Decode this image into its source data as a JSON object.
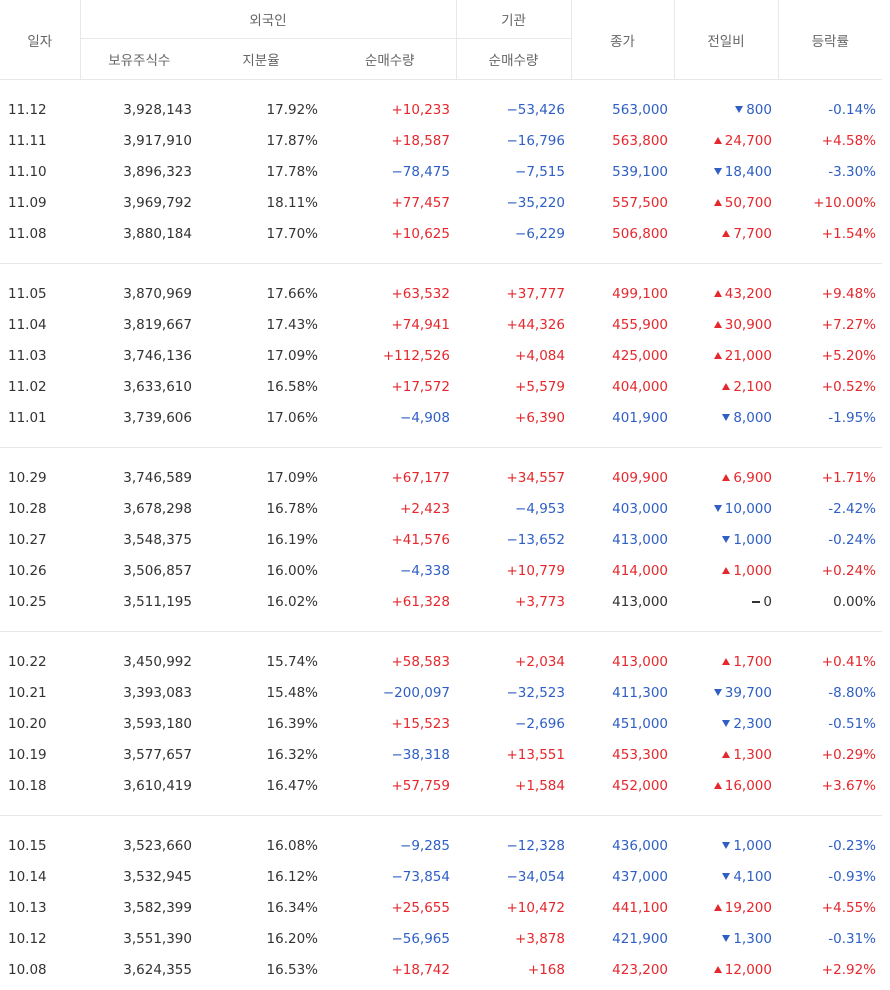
{
  "header": {
    "date": "일자",
    "foreign": "외국인",
    "institution": "기관",
    "close": "종가",
    "change": "전일비",
    "rate": "등락률",
    "holdings": "보유주식수",
    "share_ratio": "지분율",
    "foreign_net": "순매수량",
    "inst_net": "순매수량"
  },
  "groups": [
    [
      {
        "date": "11.12",
        "holdings": "3,928,143",
        "ratio": "17.92%",
        "foreign": "+10,233",
        "inst": "−53,426",
        "close": "563,000",
        "dir": "down",
        "change": "800",
        "rate": "-0.14%"
      },
      {
        "date": "11.11",
        "holdings": "3,917,910",
        "ratio": "17.87%",
        "foreign": "+18,587",
        "inst": "−16,796",
        "close": "563,800",
        "dir": "up",
        "change": "24,700",
        "rate": "+4.58%"
      },
      {
        "date": "11.10",
        "holdings": "3,896,323",
        "ratio": "17.78%",
        "foreign": "−78,475",
        "inst": "−7,515",
        "close": "539,100",
        "dir": "down",
        "change": "18,400",
        "rate": "-3.30%"
      },
      {
        "date": "11.09",
        "holdings": "3,969,792",
        "ratio": "18.11%",
        "foreign": "+77,457",
        "inst": "−35,220",
        "close": "557,500",
        "dir": "up",
        "change": "50,700",
        "rate": "+10.00%"
      },
      {
        "date": "11.08",
        "holdings": "3,880,184",
        "ratio": "17.70%",
        "foreign": "+10,625",
        "inst": "−6,229",
        "close": "506,800",
        "dir": "up",
        "change": "7,700",
        "rate": "+1.54%"
      }
    ],
    [
      {
        "date": "11.05",
        "holdings": "3,870,969",
        "ratio": "17.66%",
        "foreign": "+63,532",
        "inst": "+37,777",
        "close": "499,100",
        "dir": "up",
        "change": "43,200",
        "rate": "+9.48%"
      },
      {
        "date": "11.04",
        "holdings": "3,819,667",
        "ratio": "17.43%",
        "foreign": "+74,941",
        "inst": "+44,326",
        "close": "455,900",
        "dir": "up",
        "change": "30,900",
        "rate": "+7.27%"
      },
      {
        "date": "11.03",
        "holdings": "3,746,136",
        "ratio": "17.09%",
        "foreign": "+112,526",
        "inst": "+4,084",
        "close": "425,000",
        "dir": "up",
        "change": "21,000",
        "rate": "+5.20%"
      },
      {
        "date": "11.02",
        "holdings": "3,633,610",
        "ratio": "16.58%",
        "foreign": "+17,572",
        "inst": "+5,579",
        "close": "404,000",
        "dir": "up",
        "change": "2,100",
        "rate": "+0.52%"
      },
      {
        "date": "11.01",
        "holdings": "3,739,606",
        "ratio": "17.06%",
        "foreign": "−4,908",
        "inst": "+6,390",
        "close": "401,900",
        "dir": "down",
        "change": "8,000",
        "rate": "-1.95%"
      }
    ],
    [
      {
        "date": "10.29",
        "holdings": "3,746,589",
        "ratio": "17.09%",
        "foreign": "+67,177",
        "inst": "+34,557",
        "close": "409,900",
        "dir": "up",
        "change": "6,900",
        "rate": "+1.71%"
      },
      {
        "date": "10.28",
        "holdings": "3,678,298",
        "ratio": "16.78%",
        "foreign": "+2,423",
        "inst": "−4,953",
        "close": "403,000",
        "dir": "down",
        "change": "10,000",
        "rate": "-2.42%"
      },
      {
        "date": "10.27",
        "holdings": "3,548,375",
        "ratio": "16.19%",
        "foreign": "+41,576",
        "inst": "−13,652",
        "close": "413,000",
        "dir": "down",
        "change": "1,000",
        "rate": "-0.24%"
      },
      {
        "date": "10.26",
        "holdings": "3,506,857",
        "ratio": "16.00%",
        "foreign": "−4,338",
        "inst": "+10,779",
        "close": "414,000",
        "dir": "up",
        "change": "1,000",
        "rate": "+0.24%"
      },
      {
        "date": "10.25",
        "holdings": "3,511,195",
        "ratio": "16.02%",
        "foreign": "+61,328",
        "inst": "+3,773",
        "close": "413,000",
        "dir": "flat",
        "change": "0",
        "rate": "0.00%"
      }
    ],
    [
      {
        "date": "10.22",
        "holdings": "3,450,992",
        "ratio": "15.74%",
        "foreign": "+58,583",
        "inst": "+2,034",
        "close": "413,000",
        "dir": "up",
        "change": "1,700",
        "rate": "+0.41%"
      },
      {
        "date": "10.21",
        "holdings": "3,393,083",
        "ratio": "15.48%",
        "foreign": "−200,097",
        "inst": "−32,523",
        "close": "411,300",
        "dir": "down",
        "change": "39,700",
        "rate": "-8.80%"
      },
      {
        "date": "10.20",
        "holdings": "3,593,180",
        "ratio": "16.39%",
        "foreign": "+15,523",
        "inst": "−2,696",
        "close": "451,000",
        "dir": "down",
        "change": "2,300",
        "rate": "-0.51%"
      },
      {
        "date": "10.19",
        "holdings": "3,577,657",
        "ratio": "16.32%",
        "foreign": "−38,318",
        "inst": "+13,551",
        "close": "453,300",
        "dir": "up",
        "change": "1,300",
        "rate": "+0.29%"
      },
      {
        "date": "10.18",
        "holdings": "3,610,419",
        "ratio": "16.47%",
        "foreign": "+57,759",
        "inst": "+1,584",
        "close": "452,000",
        "dir": "up",
        "change": "16,000",
        "rate": "+3.67%"
      }
    ],
    [
      {
        "date": "10.15",
        "holdings": "3,523,660",
        "ratio": "16.08%",
        "foreign": "−9,285",
        "inst": "−12,328",
        "close": "436,000",
        "dir": "down",
        "change": "1,000",
        "rate": "-0.23%"
      },
      {
        "date": "10.14",
        "holdings": "3,532,945",
        "ratio": "16.12%",
        "foreign": "−73,854",
        "inst": "−34,054",
        "close": "437,000",
        "dir": "down",
        "change": "4,100",
        "rate": "-0.93%"
      },
      {
        "date": "10.13",
        "holdings": "3,582,399",
        "ratio": "16.34%",
        "foreign": "+25,655",
        "inst": "+10,472",
        "close": "441,100",
        "dir": "up",
        "change": "19,200",
        "rate": "+4.55%"
      },
      {
        "date": "10.12",
        "holdings": "3,551,390",
        "ratio": "16.20%",
        "foreign": "−56,965",
        "inst": "+3,878",
        "close": "421,900",
        "dir": "down",
        "change": "1,300",
        "rate": "-0.31%"
      },
      {
        "date": "10.08",
        "holdings": "3,624,355",
        "ratio": "16.53%",
        "foreign": "+18,742",
        "inst": "+168",
        "close": "423,200",
        "dir": "up",
        "change": "12,000",
        "rate": "+2.92%"
      }
    ]
  ]
}
